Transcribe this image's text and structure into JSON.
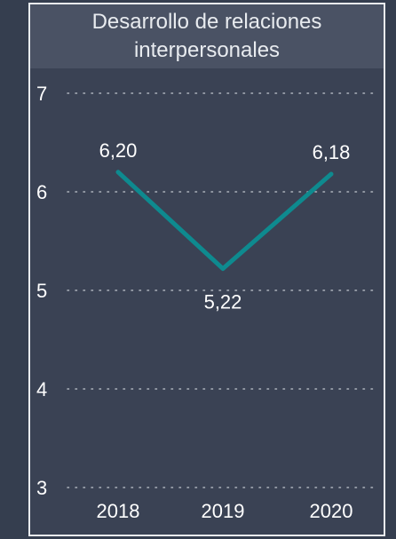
{
  "chart_data": {
    "type": "line",
    "title_line1": "Desarrollo de relaciones",
    "title_line2": "interpersonales",
    "categories": [
      "2018",
      "2019",
      "2020"
    ],
    "values": [
      6.2,
      5.22,
      6.18
    ],
    "value_labels": [
      "6,20",
      "5,22",
      "6,18"
    ],
    "y_ticks": [
      "7",
      "6",
      "5",
      "4",
      "3"
    ],
    "ylim": [
      3,
      7
    ],
    "grid": "dotted horizontal",
    "line_color": "#0e8a8f"
  }
}
